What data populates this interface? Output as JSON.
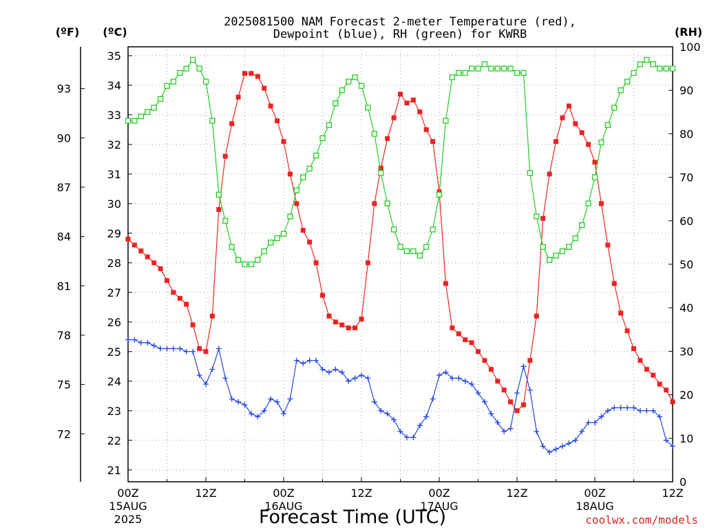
{
  "chart_data": {
    "type": "line",
    "title": "2025081500 NAM Forecast 2-meter Temperature (red), Dewpoint (blue), RH (green) for KWRB",
    "title_lines": [
      "2025081500 NAM Forecast 2-meter Temperature (red),",
      "Dewpoint (blue), RH (green) for KWRB"
    ],
    "xlabel": "Forecast Time (UTC)",
    "watermark": "coolwx.com/models",
    "x_unit_hours": true,
    "x_range_hours": [
      0,
      84
    ],
    "x_ticks": [
      {
        "hour": 0,
        "label": "00Z",
        "date": "15AUG",
        "year": "2025"
      },
      {
        "hour": 12,
        "label": "12Z",
        "date": "",
        "year": ""
      },
      {
        "hour": 24,
        "label": "00Z",
        "date": "16AUG",
        "year": ""
      },
      {
        "hour": 36,
        "label": "12Z",
        "date": "",
        "year": ""
      },
      {
        "hour": 48,
        "label": "00Z",
        "date": "17AUG",
        "year": ""
      },
      {
        "hour": 60,
        "label": "12Z",
        "date": "",
        "year": ""
      },
      {
        "hour": 72,
        "label": "00Z",
        "date": "18AUG",
        "year": ""
      },
      {
        "hour": 84,
        "label": "12Z",
        "date": "",
        "year": ""
      }
    ],
    "left_axis_c": {
      "unit_label": "(ºC)",
      "range": [
        20.6,
        35.3
      ],
      "ticks": [
        21,
        22,
        23,
        24,
        25,
        26,
        27,
        28,
        29,
        30,
        31,
        32,
        33,
        34,
        35
      ]
    },
    "left_axis_f": {
      "unit_label": "(ºF)",
      "ticks": [
        72,
        75,
        78,
        81,
        84,
        87,
        90,
        93
      ]
    },
    "right_axis_rh": {
      "unit_label": "(RH)",
      "range": [
        0,
        100
      ],
      "ticks": [
        0,
        10,
        20,
        30,
        40,
        50,
        60,
        70,
        80,
        90,
        100
      ]
    },
    "grid": true,
    "series": [
      {
        "name": "Temperature",
        "color": "#ee2222",
        "marker": "filled-square",
        "axis": "celsius",
        "x": [
          0,
          1,
          2,
          3,
          4,
          5,
          6,
          7,
          8,
          9,
          10,
          11,
          12,
          13,
          14,
          15,
          16,
          17,
          18,
          19,
          20,
          21,
          22,
          23,
          24,
          25,
          26,
          27,
          28,
          29,
          30,
          31,
          32,
          33,
          34,
          35,
          36,
          37,
          38,
          39,
          40,
          41,
          42,
          43,
          44,
          45,
          46,
          47,
          48,
          49,
          50,
          51,
          52,
          53,
          54,
          55,
          56,
          57,
          58,
          59,
          60,
          61,
          62,
          63,
          64,
          65,
          66,
          67,
          68,
          69,
          70,
          71,
          72,
          73,
          74,
          75,
          76,
          77,
          78,
          79,
          80,
          81,
          82,
          83,
          84
        ],
        "values": [
          28.8,
          28.6,
          28.4,
          28.2,
          28.0,
          27.8,
          27.4,
          27.0,
          26.8,
          26.6,
          25.9,
          25.1,
          25.0,
          26.2,
          29.8,
          31.6,
          32.7,
          33.6,
          34.4,
          34.4,
          34.3,
          33.9,
          33.3,
          32.8,
          32.1,
          31.0,
          30.0,
          29.1,
          28.7,
          28.0,
          26.9,
          26.2,
          26.0,
          25.9,
          25.8,
          25.8,
          26.1,
          28.0,
          30.0,
          31.2,
          32.2,
          32.9,
          33.7,
          33.4,
          33.5,
          33.1,
          32.5,
          32.1,
          30.4,
          27.3,
          25.8,
          25.6,
          25.4,
          25.3,
          25.0,
          24.7,
          24.4,
          24.0,
          23.7,
          23.3,
          23.0,
          23.2,
          24.7,
          26.2,
          29.5,
          31.0,
          32.1,
          32.9,
          33.3,
          32.7,
          32.4,
          32.0,
          31.4,
          30.0,
          28.6,
          27.3,
          26.3,
          25.7,
          25.1,
          24.7,
          24.4,
          24.2,
          23.9,
          23.7,
          23.3
        ]
      },
      {
        "name": "Dewpoint",
        "color": "#2244dd",
        "marker": "plus",
        "axis": "celsius",
        "x": [
          0,
          1,
          2,
          3,
          4,
          5,
          6,
          7,
          8,
          9,
          10,
          11,
          12,
          13,
          14,
          15,
          16,
          17,
          18,
          19,
          20,
          21,
          22,
          23,
          24,
          25,
          26,
          27,
          28,
          29,
          30,
          31,
          32,
          33,
          34,
          35,
          36,
          37,
          38,
          39,
          40,
          41,
          42,
          43,
          44,
          45,
          46,
          47,
          48,
          49,
          50,
          51,
          52,
          53,
          54,
          55,
          56,
          57,
          58,
          59,
          60,
          61,
          62,
          63,
          64,
          65,
          66,
          67,
          68,
          69,
          70,
          71,
          72,
          73,
          74,
          75,
          76,
          77,
          78,
          79,
          80,
          81,
          82,
          83,
          84
        ],
        "values": [
          25.4,
          25.4,
          25.3,
          25.3,
          25.2,
          25.1,
          25.1,
          25.1,
          25.1,
          25.0,
          25.0,
          24.2,
          23.9,
          24.4,
          25.1,
          24.1,
          23.4,
          23.3,
          23.2,
          22.9,
          22.8,
          23.0,
          23.4,
          23.3,
          22.9,
          23.4,
          24.7,
          24.6,
          24.7,
          24.7,
          24.4,
          24.3,
          24.4,
          24.3,
          24.0,
          24.1,
          24.2,
          24.1,
          23.3,
          23.0,
          22.9,
          22.7,
          22.3,
          22.1,
          22.1,
          22.5,
          22.8,
          23.4,
          24.2,
          24.3,
          24.1,
          24.1,
          24.0,
          23.9,
          23.6,
          23.3,
          22.9,
          22.6,
          22.3,
          22.4,
          23.6,
          24.5,
          23.7,
          22.3,
          21.8,
          21.6,
          21.7,
          21.8,
          21.9,
          22.0,
          22.3,
          22.6,
          22.6,
          22.8,
          23.0,
          23.1,
          23.1,
          23.1,
          23.1,
          23.0,
          23.0,
          23.0,
          22.8,
          22.0,
          21.8
        ]
      },
      {
        "name": "RH",
        "color": "#22cc22",
        "marker": "open-square",
        "axis": "rh",
        "x": [
          0,
          1,
          2,
          3,
          4,
          5,
          6,
          7,
          8,
          9,
          10,
          11,
          12,
          13,
          14,
          15,
          16,
          17,
          18,
          19,
          20,
          21,
          22,
          23,
          24,
          25,
          26,
          27,
          28,
          29,
          30,
          31,
          32,
          33,
          34,
          35,
          36,
          37,
          38,
          39,
          40,
          41,
          42,
          43,
          44,
          45,
          46,
          47,
          48,
          49,
          50,
          51,
          52,
          53,
          54,
          55,
          56,
          57,
          58,
          59,
          60,
          61,
          62,
          63,
          64,
          65,
          66,
          67,
          68,
          69,
          70,
          71,
          72,
          73,
          74,
          75,
          76,
          77,
          78,
          79,
          80,
          81,
          82,
          83,
          84
        ],
        "values": [
          83,
          83,
          84,
          85,
          86,
          88,
          91,
          92,
          94,
          95,
          97,
          95,
          92,
          83,
          66,
          60,
          54,
          51,
          50,
          50,
          51,
          53,
          55,
          56,
          57,
          61,
          67,
          70,
          72,
          75,
          79,
          82,
          87,
          90,
          92,
          93,
          91,
          86,
          80,
          71,
          64,
          58,
          54,
          53,
          53,
          52,
          54,
          58,
          66,
          83,
          93,
          94,
          94,
          95,
          95,
          96,
          95,
          95,
          95,
          95,
          94,
          94,
          71,
          61,
          54,
          51,
          52,
          53,
          54,
          56,
          59,
          64,
          70,
          78,
          82,
          86,
          90,
          92,
          94,
          96,
          97,
          96,
          95,
          95,
          95
        ]
      }
    ]
  }
}
